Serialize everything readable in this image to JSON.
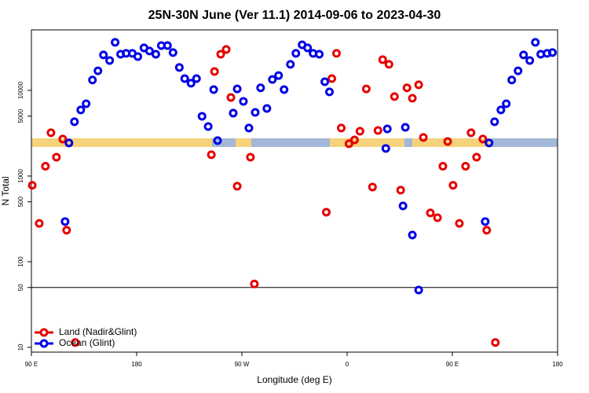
{
  "chart_data": {
    "type": "scatter",
    "title": "25N-30N June (Ver 11.1)   2014-09-06 to 2023-04-30",
    "xlabel": "Longitude (deg E)",
    "ylabel": "N Total",
    "ylog": true,
    "legend": "lower left",
    "hline": 50,
    "xlim": [
      90,
      540
    ],
    "ylim": [
      8.8,
      50800
    ],
    "xticks": [
      {
        "value": 90,
        "label": "90 E"
      },
      180,
      {
        "value": 270,
        "label": "90 W"
      },
      {
        "value": 360,
        "label": "0"
      },
      {
        "value": 450,
        "label": "90 E"
      },
      {
        "value": 540,
        "label": "180"
      }
    ],
    "yticks": [
      10,
      50,
      100,
      500,
      1000,
      5000,
      10000
    ],
    "series": [
      {
        "name": "Land (Nadir&Glint)",
        "color": "#e60000",
        "x": [
          90.7,
          96.7,
          102.0,
          106.7,
          111.4,
          116.8,
          120.1,
          127.5,
          243.9,
          246.6,
          251.9,
          256.6,
          260.6,
          266.0,
          277.3,
          280.7,
          342.2,
          346.9,
          350.9,
          355.0,
          361.6,
          366.3,
          371.0,
          376.4,
          381.7,
          386.4,
          390.4,
          395.8,
          400.5,
          405.8,
          411.2,
          415.8,
          421.2,
          425.2,
          431.2,
          437.3,
          441.9,
          446.0,
          450.6,
          456.0,
          461.3,
          466.0,
          470.7,
          476.1,
          479.4,
          486.8
        ],
        "values": [
          780,
          280,
          1300,
          3200,
          1660,
          2700,
          233,
          11.4,
          1770,
          16600,
          26400,
          30000,
          8260,
          760,
          1660,
          55,
          378,
          13700,
          27000,
          3630,
          2380,
          2640,
          3330,
          10400,
          744,
          3400,
          22800,
          20100,
          8450,
          684,
          10700,
          8090,
          11600,
          2820,
          371,
          326,
          1300,
          2530,
          780,
          280,
          1300,
          3200,
          1660,
          2700,
          233,
          11.4
        ]
      },
      {
        "name": "Ocean (Glint)",
        "color": "#0000e6",
        "x": [
          118.8,
          122.1,
          126.8,
          132.2,
          136.8,
          142.2,
          146.9,
          151.6,
          156.9,
          161.6,
          166.3,
          171.0,
          176.3,
          181.0,
          186.3,
          191.0,
          196.4,
          201.1,
          206.4,
          211.1,
          216.5,
          221.1,
          226.5,
          231.2,
          235.9,
          241.2,
          245.9,
          249.2,
          262.6,
          266.0,
          271.3,
          276.0,
          281.4,
          286.0,
          291.4,
          296.1,
          301.4,
          306.1,
          311.5,
          316.2,
          321.5,
          326.2,
          330.9,
          336.2,
          340.9,
          344.9,
          393.1,
          394.4,
          407.8,
          409.8,
          415.8,
          421.2,
          478.1,
          481.4,
          486.1,
          491.5,
          496.1,
          500.8,
          506.2,
          510.9,
          516.2,
          521.0,
          525.6,
          531.0,
          535.6
        ],
        "values": [
          294,
          2430,
          4300,
          5900,
          6980,
          13200,
          16900,
          25900,
          22300,
          36300,
          26400,
          27000,
          27000,
          24800,
          31300,
          28800,
          26400,
          33300,
          33300,
          27600,
          18500,
          13700,
          12100,
          13700,
          4980,
          3780,
          10200,
          2590,
          5420,
          10400,
          7440,
          3630,
          5530,
          10700,
          6150,
          13400,
          14900,
          10200,
          20100,
          27000,
          34000,
          31300,
          27000,
          26400,
          12600,
          9590,
          2100,
          3550,
          448,
          3700,
          205,
          46.7,
          294,
          2430,
          4300,
          5900,
          6980,
          13200,
          16900,
          25900,
          22300,
          36300,
          26400,
          27000,
          27600
        ]
      }
    ]
  }
}
